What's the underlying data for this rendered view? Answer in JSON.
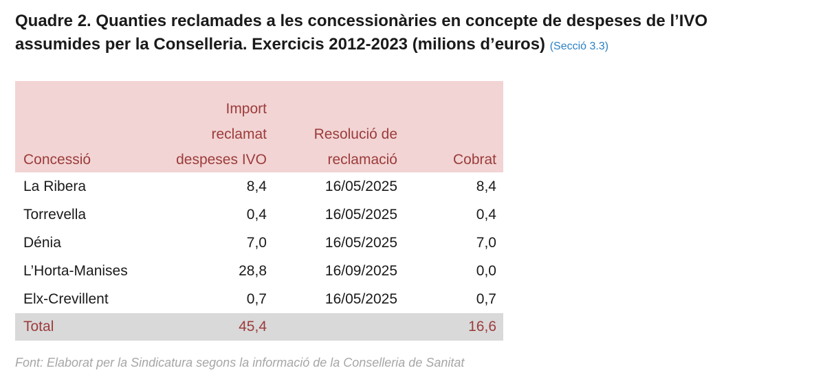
{
  "header": {
    "title": [
      "Quadre 2. Quanties reclamades a les concessionàries en concepte de despeses de l’IVO",
      "assumides per la Conselleria. Exercicis 2012-2023 (milions d’euros)"
    ],
    "link": "(Secció 3.3)"
  },
  "table": {
    "columns": [
      "Concessió",
      "Import\nreclamat\ndespeses IVO",
      "Resolució de\nreclamació",
      "Cobrat"
    ],
    "rows": [
      [
        "La Ribera",
        "8,4",
        "16/05/2025",
        "8,4"
      ],
      [
        "Torrevella",
        "0,4",
        "16/05/2025",
        "0,4"
      ],
      [
        "Dénia",
        "7,0",
        "16/05/2025",
        "7,0"
      ],
      [
        "L’Horta-Manises",
        "28,8",
        "16/09/2025",
        "0,0"
      ],
      [
        "Elx-Crevillent",
        "0,7",
        "16/05/2025",
        "0,7"
      ]
    ],
    "total": {
      "label": "Total",
      "import": "45,4",
      "cobrat": "16,6"
    }
  },
  "source": "Font: Elaborat per la Sindicatura segons la informació de la Conselleria de Sanitat"
}
